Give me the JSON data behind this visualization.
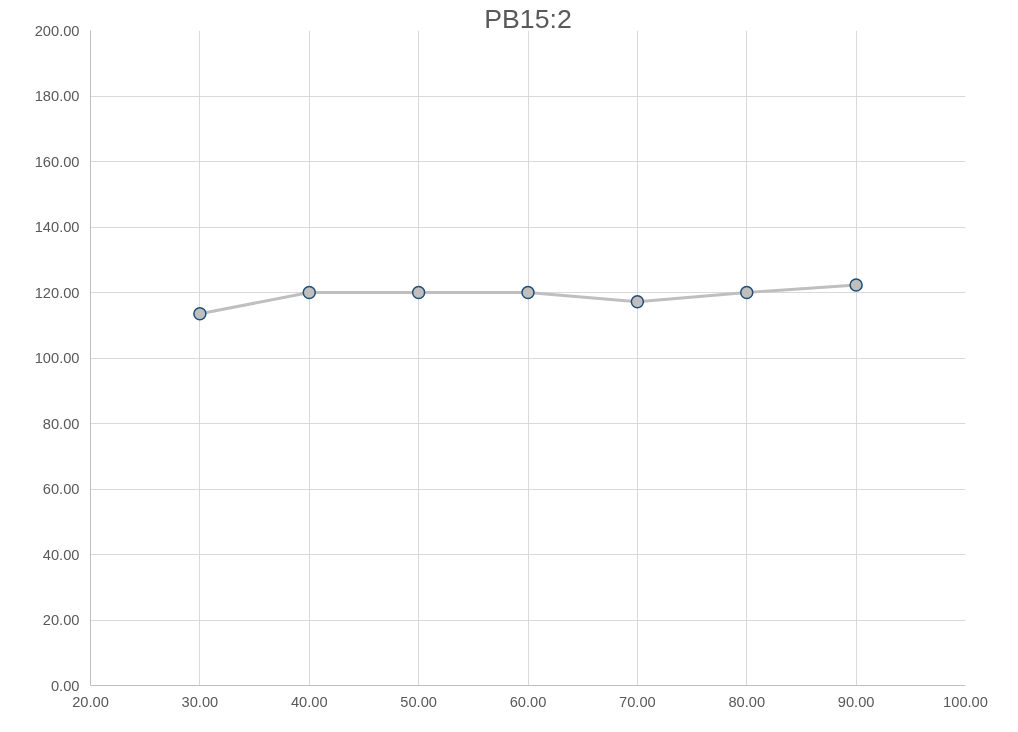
{
  "chart_data": {
    "type": "line",
    "title": "PB15:2",
    "x": [
      30,
      40,
      50,
      60,
      70,
      80,
      90
    ],
    "series": [
      {
        "color": "#bfbfbf",
        "values": [
          113.5,
          120,
          120,
          120,
          117.2,
          120,
          122.3
        ]
      }
    ],
    "marker": "circle",
    "line_style": "solid",
    "xlim": [
      20,
      100
    ],
    "ylim": [
      0,
      200
    ],
    "xticks": [
      {
        "value": 20,
        "label": "20.00"
      },
      {
        "value": 30,
        "label": "30.00"
      },
      {
        "value": 40,
        "label": "40.00"
      },
      {
        "value": 50,
        "label": "50.00"
      },
      {
        "value": 60,
        "label": "60.00"
      },
      {
        "value": 70,
        "label": "70.00"
      },
      {
        "value": 80,
        "label": "80.00"
      },
      {
        "value": 90,
        "label": "90.00"
      },
      {
        "value": 100,
        "label": "100.00"
      }
    ],
    "yticks": [
      {
        "value": 0,
        "label": "0.00"
      },
      {
        "value": 20,
        "label": "20.00"
      },
      {
        "value": 40,
        "label": "40.00"
      },
      {
        "value": 60,
        "label": "60.00"
      },
      {
        "value": 80,
        "label": "80.00"
      },
      {
        "value": 100,
        "label": "100.00"
      },
      {
        "value": 120,
        "label": "120.00"
      },
      {
        "value": 140,
        "label": "140.00"
      },
      {
        "value": 160,
        "label": "160.00"
      },
      {
        "value": 180,
        "label": "180.00"
      },
      {
        "value": 200,
        "label": "200.00"
      }
    ],
    "grid": true
  }
}
